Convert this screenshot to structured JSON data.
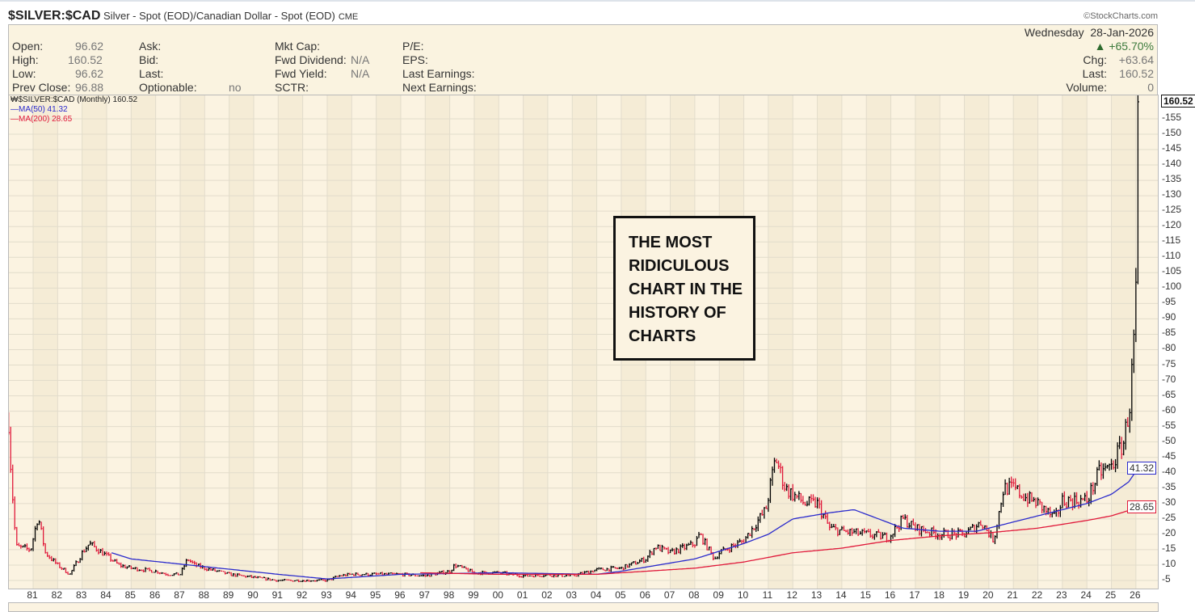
{
  "header": {
    "symbol": "$SILVER:$CAD",
    "description": "Silver - Spot (EOD)/Canadian Dollar - Spot (EOD)",
    "exchange": "CME",
    "copyright": "©StockCharts.com"
  },
  "info": {
    "open_label": "Open:",
    "open": "96.62",
    "high_label": "High:",
    "high": "160.52",
    "low_label": "Low:",
    "low": "96.62",
    "prev_label": "Prev Close:",
    "prev": "96.88",
    "ask_label": "Ask:",
    "bid_label": "Bid:",
    "last_label": "Last:",
    "optionable_label": "Optionable:",
    "optionable": "no",
    "mktcap_label": "Mkt Cap:",
    "fwddiv_label": "Fwd Dividend:",
    "fwddiv": "N/A",
    "fwdyield_label": "Fwd Yield:",
    "fwdyield": "N/A",
    "sctr_label": "SCTR:",
    "pe_label": "P/E:",
    "eps_label": "EPS:",
    "lastearn_label": "Last Earnings:",
    "nextearn_label": "Next Earnings:",
    "date": "Wednesday  28-Jan-2026",
    "pct": "+65.70%",
    "chg_label": "Chg:",
    "chg": "+63.64",
    "last2_label": "Last:",
    "last2": "160.52",
    "vol_label": "Volume:",
    "vol": "0"
  },
  "legend": {
    "main": "$SILVER:$CAD (Monthly) 160.52",
    "ma50": "MA(50) 41.32",
    "ma200": "MA(200) 28.65"
  },
  "callout": [
    "THE MOST",
    "RIDICULOUS",
    "CHART IN THE",
    "HISTORY OF",
    "CHARTS"
  ],
  "colors": {
    "up": "#000000",
    "down": "#e0193a",
    "ma50": "#2a2acc",
    "ma200": "#e0193a",
    "bg": "#fbf3e1"
  },
  "chart_data": {
    "type": "ohlc",
    "title": "$SILVER:$CAD (Monthly)",
    "ylim": [
      3,
      163
    ],
    "yticks": [
      5,
      10,
      15,
      20,
      25,
      30,
      35,
      40,
      45,
      50,
      55,
      60,
      65,
      70,
      75,
      80,
      85,
      90,
      95,
      100,
      105,
      110,
      115,
      120,
      125,
      130,
      135,
      140,
      145,
      150,
      155
    ],
    "xticks": [
      "81",
      "82",
      "83",
      "84",
      "85",
      "86",
      "87",
      "88",
      "89",
      "90",
      "91",
      "92",
      "93",
      "94",
      "95",
      "96",
      "97",
      "98",
      "99",
      "00",
      "01",
      "02",
      "03",
      "04",
      "05",
      "06",
      "07",
      "08",
      "09",
      "10",
      "11",
      "12",
      "13",
      "14",
      "15",
      "16",
      "17",
      "18",
      "19",
      "20",
      "21",
      "22",
      "23",
      "24",
      "25",
      "26"
    ],
    "price_points": [
      [
        1980.0,
        57
      ],
      [
        1980.1,
        40
      ],
      [
        1980.3,
        16
      ],
      [
        1980.9,
        15
      ],
      [
        1981.2,
        26
      ],
      [
        1981.5,
        14
      ],
      [
        1982.0,
        10
      ],
      [
        1982.5,
        7
      ],
      [
        1983.0,
        14
      ],
      [
        1983.3,
        17
      ],
      [
        1984.0,
        13
      ],
      [
        1984.5,
        10
      ],
      [
        1985.0,
        9
      ],
      [
        1986.0,
        8
      ],
      [
        1986.5,
        7
      ],
      [
        1987.0,
        7
      ],
      [
        1987.3,
        12
      ],
      [
        1987.6,
        10
      ],
      [
        1988.0,
        9
      ],
      [
        1989.0,
        7
      ],
      [
        1990.0,
        6
      ],
      [
        1991.0,
        5
      ],
      [
        1992.0,
        5
      ],
      [
        1993.0,
        5
      ],
      [
        1993.5,
        6.5
      ],
      [
        1994.0,
        7
      ],
      [
        1995.0,
        7
      ],
      [
        1996.0,
        7
      ],
      [
        1997.0,
        6.5
      ],
      [
        1998.0,
        8
      ],
      [
        1998.2,
        10
      ],
      [
        1999.0,
        7.5
      ],
      [
        2000.0,
        7.5
      ],
      [
        2001.0,
        6.5
      ],
      [
        2002.0,
        6.8
      ],
      [
        2003.0,
        6.5
      ],
      [
        2004.0,
        8.5
      ],
      [
        2005.0,
        9
      ],
      [
        2006.0,
        12
      ],
      [
        2006.4,
        16
      ],
      [
        2007.0,
        14
      ],
      [
        2008.0,
        17
      ],
      [
        2008.2,
        20
      ],
      [
        2008.8,
        12
      ],
      [
        2009.0,
        14
      ],
      [
        2010.0,
        18
      ],
      [
        2010.9,
        28
      ],
      [
        2011.3,
        45
      ],
      [
        2011.7,
        35
      ],
      [
        2012.0,
        33
      ],
      [
        2012.5,
        30
      ],
      [
        2013.0,
        30
      ],
      [
        2013.5,
        22
      ],
      [
        2014.0,
        21
      ],
      [
        2015.0,
        20
      ],
      [
        2015.9,
        19
      ],
      [
        2016.5,
        25
      ],
      [
        2017.0,
        22
      ],
      [
        2018.0,
        20
      ],
      [
        2019.0,
        20
      ],
      [
        2019.7,
        24
      ],
      [
        2020.2,
        18
      ],
      [
        2020.6,
        35
      ],
      [
        2021.0,
        35
      ],
      [
        2021.5,
        32
      ],
      [
        2022.0,
        30
      ],
      [
        2022.7,
        25
      ],
      [
        2023.0,
        31
      ],
      [
        2024.0,
        31
      ],
      [
        2024.5,
        40
      ],
      [
        2025.0,
        42
      ],
      [
        2025.5,
        50
      ],
      [
        2025.75,
        62
      ],
      [
        2025.9,
        80
      ],
      [
        2026.0,
        97
      ],
      [
        2026.08,
        160.52
      ]
    ],
    "ma50": [
      [
        1984.2,
        14
      ],
      [
        1985.0,
        12
      ],
      [
        1988.0,
        9.5
      ],
      [
        1991.0,
        7
      ],
      [
        1993.0,
        5.5
      ],
      [
        1994.0,
        6
      ],
      [
        1996.0,
        7
      ],
      [
        2000.0,
        7.5
      ],
      [
        2004.0,
        7
      ],
      [
        2005.0,
        8
      ],
      [
        2008.0,
        12
      ],
      [
        2010.0,
        17
      ],
      [
        2011.0,
        20
      ],
      [
        2012.0,
        25
      ],
      [
        2013.5,
        27
      ],
      [
        2014.5,
        28
      ],
      [
        2015.5,
        25
      ],
      [
        2016.5,
        22
      ],
      [
        2018.0,
        21
      ],
      [
        2019.5,
        21
      ],
      [
        2021.0,
        24
      ],
      [
        2023.0,
        28
      ],
      [
        2024.0,
        30
      ],
      [
        2025.0,
        33
      ],
      [
        2025.7,
        37
      ],
      [
        2026.08,
        41.32
      ]
    ],
    "ma200": [
      [
        1996.8,
        7.5
      ],
      [
        2000.0,
        7
      ],
      [
        2004.0,
        7
      ],
      [
        2006.0,
        8
      ],
      [
        2008.0,
        9
      ],
      [
        2010.0,
        11
      ],
      [
        2012.0,
        14
      ],
      [
        2014.0,
        15.5
      ],
      [
        2016.0,
        18
      ],
      [
        2018.0,
        19.5
      ],
      [
        2020.0,
        20.5
      ],
      [
        2022.0,
        22
      ],
      [
        2024.0,
        24.5
      ],
      [
        2025.0,
        26
      ],
      [
        2026.08,
        28.65
      ]
    ],
    "last_tags": {
      "price": "160.52",
      "ma50": "41.32",
      "ma200": "28.65"
    }
  }
}
